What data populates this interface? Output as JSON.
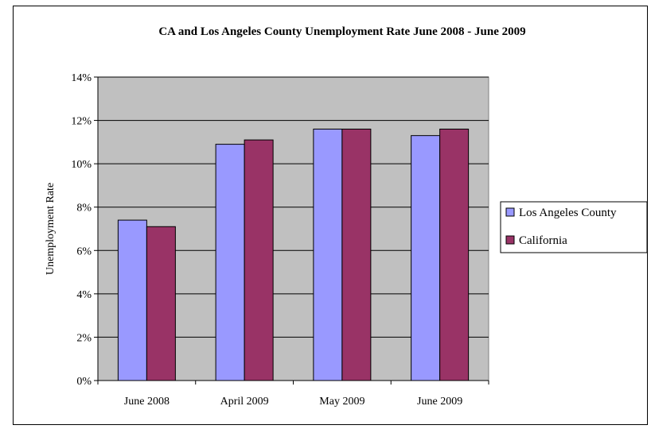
{
  "chart_data": {
    "type": "bar",
    "title": "CA and Los Angeles County Unemployment Rate June 2008 - June 2009",
    "xlabel": "",
    "ylabel": "Unemployment Rate",
    "categories": [
      "June 2008",
      "April 2009",
      "May 2009",
      "June 2009"
    ],
    "series": [
      {
        "name": "Los Angeles County",
        "color": "#9999FF",
        "values": [
          7.4,
          10.9,
          11.6,
          11.3
        ]
      },
      {
        "name": "California",
        "color": "#993366",
        "values": [
          7.1,
          11.1,
          11.6,
          11.6
        ]
      }
    ],
    "ylim": [
      0,
      14
    ],
    "yticks": [
      0,
      2,
      4,
      6,
      8,
      10,
      12,
      14
    ],
    "ytick_labels": [
      "0%",
      "2%",
      "4%",
      "6%",
      "8%",
      "10%",
      "12%",
      "14%"
    ],
    "grid": true,
    "plot_background": "#C0C0C0",
    "legend_position": "right"
  }
}
